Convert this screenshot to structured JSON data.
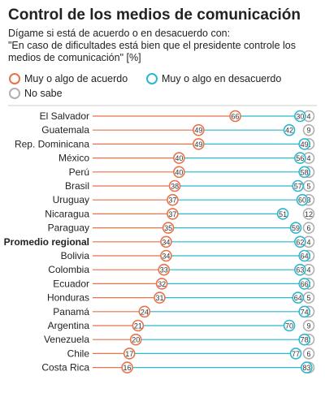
{
  "chart_data": {
    "type": "dot",
    "title": "Control de los medios de comunicación",
    "subtitle_lines": [
      "Dígame si está de acuerdo o en desacuerdo con:",
      "\"En caso de dificultades está bien que el presidente controle los",
      "medios de comunicación\"  [%]"
    ],
    "xlim": [
      0,
      100
    ],
    "highlight_category": "Promedio regional",
    "categories": [
      "El Salvador",
      "Guatemala",
      "Rep. Dominicana",
      "México",
      "Perú",
      "Brasil",
      "Uruguay",
      "Nicaragua",
      "Paraguay",
      "Promedio regional",
      "Bolivia",
      "Colombia",
      "Ecuador",
      "Honduras",
      "Panamá",
      "Argentina",
      "Venezuela",
      "Chile",
      "Costa Rica"
    ],
    "series": [
      {
        "name": "Muy o algo de acuerdo",
        "color": "#e8724a",
        "values": [
          66,
          49,
          49,
          40,
          40,
          38,
          37,
          37,
          35,
          34,
          34,
          33,
          32,
          31,
          24,
          21,
          20,
          17,
          16
        ]
      },
      {
        "name": "Muy o algo en desacuerdo",
        "color": "#2ab7cf",
        "values": [
          30,
          42,
          49,
          56,
          58,
          57,
          60,
          51,
          59,
          62,
          64,
          63,
          66,
          64,
          74,
          70,
          78,
          77,
          83
        ]
      },
      {
        "name": "No sabe",
        "color": "#b0b0b0",
        "values": [
          4,
          9,
          2,
          4,
          2,
          5,
          3,
          12,
          6,
          4,
          2,
          4,
          2,
          5,
          2,
          9,
          2,
          6,
          1
        ]
      }
    ]
  }
}
